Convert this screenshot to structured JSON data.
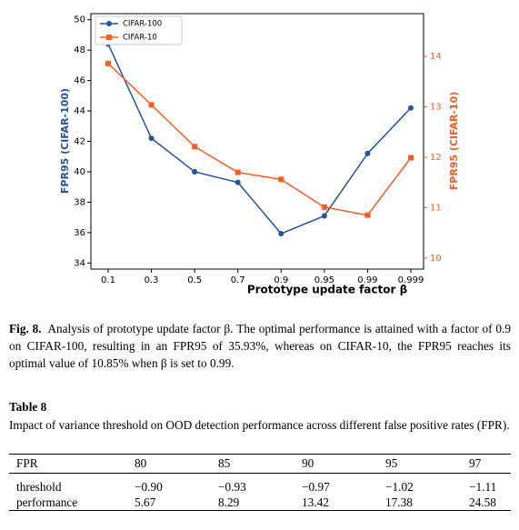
{
  "chart_data": {
    "type": "line",
    "xlabel": "Prototype update factor β",
    "ylabel": "FPR95 (CIFAR-100)",
    "y2label": "FPR95 (CIFAR-10)",
    "categories": [
      "0.1",
      "0.3",
      "0.5",
      "0.7",
      "0.9",
      "0.95",
      "0.99",
      "0.999"
    ],
    "series": [
      {
        "name": "CIFAR-100",
        "color": "#2353a3",
        "marker": "circle",
        "values": [
          48.4,
          42.2,
          40.0,
          39.3,
          35.93,
          37.1,
          41.2,
          44.2
        ]
      },
      {
        "name": "CIFAR-10",
        "color": "#ff5a1f",
        "marker": "square",
        "axis": "y2",
        "values": [
          13.86,
          13.04,
          12.21,
          11.7,
          11.56,
          11.01,
          10.85,
          11.99
        ]
      }
    ],
    "ylim": [
      33.6,
      50.4
    ],
    "yticks": [
      34,
      36,
      38,
      40,
      42,
      44,
      46,
      48,
      50
    ],
    "y2lim": [
      9.78,
      14.85
    ],
    "y2ticks": [
      10,
      11,
      12,
      13,
      14
    ],
    "legend": "upper left"
  },
  "figure_caption": {
    "label": "Fig. 8.",
    "text": "Analysis of prototype update factor β. The optimal performance is attained with a factor of 0.9 on CIFAR-100, resulting in an FPR95 of 35.93%, whereas on CIFAR-10, the FPR95 reaches its optimal value of 10.85% when β is set to 0.99."
  },
  "table": {
    "title": "Table 8",
    "caption": "Impact of variance threshold on OOD detection performance across different false positive rates (FPR).",
    "header": [
      "FPR",
      "80",
      "85",
      "90",
      "95",
      "97"
    ],
    "rows": [
      [
        "threshold",
        "−0.90",
        "−0.93",
        "−0.97",
        "−1.02",
        "−1.11"
      ],
      [
        "performance",
        "5.67",
        "8.29",
        "13.42",
        "17.38",
        "24.58"
      ]
    ]
  }
}
